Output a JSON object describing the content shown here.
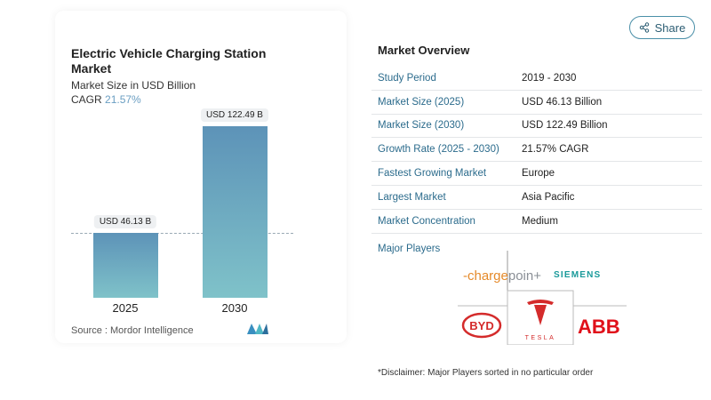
{
  "share_label": "Share",
  "chart_data": {
    "type": "bar",
    "title": "Electric Vehicle Charging Station Market",
    "subtitle": "Market Size in USD Billion",
    "cagr_label": "CAGR",
    "cagr_value": "21.57%",
    "categories": [
      "2025",
      "2030"
    ],
    "values": [
      46.13,
      122.49
    ],
    "data_labels": [
      "USD 46.13 B",
      "USD 122.49 B"
    ],
    "ylim": [
      0,
      122.49
    ],
    "source": "Source :  Mordor Intelligence"
  },
  "overview": {
    "title": "Market Overview",
    "rows": [
      {
        "label": "Study Period",
        "value": "2019 - 2030"
      },
      {
        "label": "Market Size (2025)",
        "value": "USD 46.13 Billion"
      },
      {
        "label": "Market Size (2030)",
        "value": "USD 122.49 Billion"
      },
      {
        "label": "Growth Rate (2025 - 2030)",
        "value": "21.57% CAGR"
      },
      {
        "label": "Fastest Growing Market",
        "value": "Europe"
      },
      {
        "label": "Largest Market",
        "value": "Asia Pacific"
      },
      {
        "label": "Market Concentration",
        "value": "Medium"
      }
    ],
    "major_players_label": "Major Players",
    "players": [
      "chargepoint",
      "SIEMENS",
      "BYD",
      "TESLA",
      "ABB"
    ],
    "disclaimer": "*Disclaimer: Major Players sorted in no particular order"
  }
}
